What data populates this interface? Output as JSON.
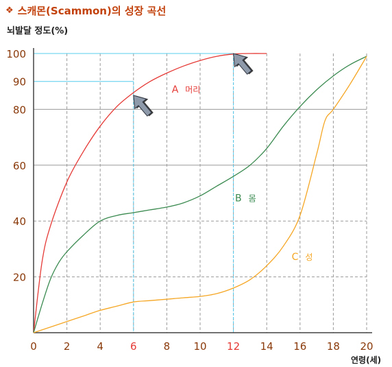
{
  "title": {
    "bullet": "❖",
    "text": "스캐몬(Scammon)의 성장 곡선"
  },
  "chart_data": {
    "type": "line",
    "ylabel": "뇌발달 정도(%)",
    "xlabel": "연령(세)",
    "xlim": [
      0,
      20
    ],
    "ylim": [
      0,
      100
    ],
    "x_ticks": [
      {
        "value": 0,
        "label": "0"
      },
      {
        "value": 2,
        "label": "2"
      },
      {
        "value": 4,
        "label": "4"
      },
      {
        "value": 6,
        "label": "6",
        "highlight": true
      },
      {
        "value": 8,
        "label": "8"
      },
      {
        "value": 10,
        "label": "10"
      },
      {
        "value": 12,
        "label": "12",
        "highlight": true
      },
      {
        "value": 14,
        "label": "14"
      },
      {
        "value": 16,
        "label": "16"
      },
      {
        "value": 18,
        "label": "18"
      },
      {
        "value": 20,
        "label": "20"
      }
    ],
    "y_ticks": [
      {
        "value": 20,
        "label": "20"
      },
      {
        "value": 40,
        "label": "40"
      },
      {
        "value": 60,
        "label": "60"
      },
      {
        "value": 80,
        "label": "80"
      },
      {
        "value": 90,
        "label": "90"
      },
      {
        "value": 100,
        "label": "100"
      }
    ],
    "grid": true,
    "series": [
      {
        "name": "A 머리",
        "color": "#e53935",
        "x": [
          0,
          0.5,
          1,
          2,
          3,
          4,
          5,
          6,
          7,
          8,
          9,
          10,
          11,
          12,
          13,
          14
        ],
        "values": [
          0,
          25,
          38,
          54,
          65,
          74,
          81,
          86,
          90,
          93,
          95.5,
          97.5,
          99,
          99.8,
          100,
          100
        ]
      },
      {
        "name": "B 몸",
        "color": "#3a8a50",
        "x": [
          0,
          0.5,
          1,
          1.5,
          2,
          3,
          4,
          5,
          6,
          7,
          8,
          9,
          10,
          11,
          12,
          13,
          14,
          15,
          16,
          17,
          18,
          19,
          20
        ],
        "values": [
          0,
          10,
          19,
          25,
          29,
          35,
          40,
          42,
          43,
          44,
          45,
          46.5,
          49,
          52.5,
          56,
          60,
          66,
          74,
          81,
          87,
          92,
          96,
          99
        ]
      },
      {
        "name": "C 성",
        "color": "#f5a623",
        "x": [
          0,
          1,
          2,
          3,
          4,
          5,
          6,
          7,
          8,
          9,
          10,
          11,
          12,
          13,
          14,
          15,
          16,
          17,
          17.5,
          18,
          19,
          20
        ],
        "values": [
          0,
          2,
          4,
          6,
          8,
          9.5,
          11,
          11.5,
          12,
          12.5,
          13,
          14,
          16,
          19,
          24,
          31,
          42,
          64,
          76,
          80,
          89,
          99
        ]
      }
    ],
    "annotations": [
      {
        "type": "guide",
        "x": 6,
        "y": 90,
        "color": "#55ccee"
      },
      {
        "type": "guide",
        "x": 12,
        "y": 100,
        "color": "#55ccee"
      },
      {
        "type": "arrow",
        "x": 6,
        "y": 85
      },
      {
        "type": "arrow",
        "x": 12,
        "y": 100
      }
    ],
    "labels": [
      {
        "letter": "A",
        "name": "머리",
        "color": "#e53935",
        "x": 8.3,
        "y": 86
      },
      {
        "letter": "B",
        "name": "몸",
        "color": "#3a8a50",
        "x": 12.1,
        "y": 47
      },
      {
        "letter": "C",
        "name": "성",
        "color": "#f5a623",
        "x": 15.5,
        "y": 26
      }
    ]
  }
}
